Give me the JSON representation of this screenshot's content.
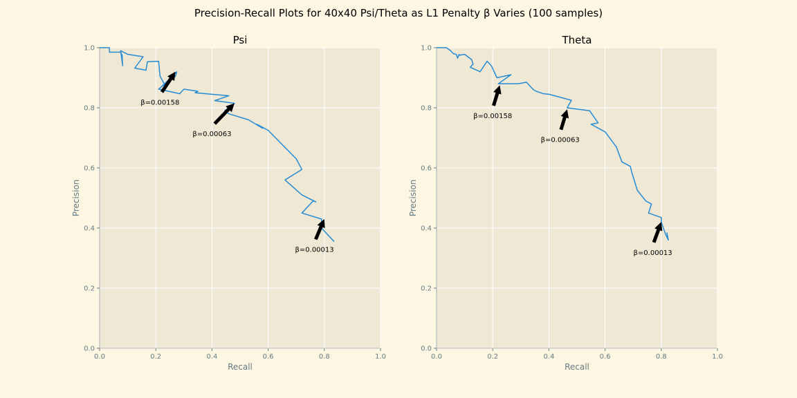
{
  "figure": {
    "suptitle": "Precision-Recall Plots for 40x40 Psi/Theta as L1 Penalty β Varies (100 samples)"
  },
  "colors": {
    "figure_bg": "#fdf6e3",
    "axes_bg": "#eee8d5",
    "grid": "#ffffff",
    "line": "#268bd2",
    "tick_text": "#657b83",
    "arrow": "#000000"
  },
  "chart_data": [
    {
      "type": "line",
      "title": "Psi",
      "xlabel": "Recall",
      "ylabel": "Precision",
      "xlim": [
        0,
        1
      ],
      "ylim": [
        0,
        1
      ],
      "grid": true,
      "xticks": [
        "0.0",
        "0.2",
        "0.4",
        "0.6",
        "0.8",
        "1.0"
      ],
      "yticks": [
        "0.0",
        "0.2",
        "0.4",
        "0.6",
        "0.8",
        "1.0"
      ],
      "series": [
        {
          "x": [
            0.0,
            0.035,
            0.035,
            0.075,
            0.08,
            0.082,
            0.075,
            0.085,
            0.1,
            0.155,
            0.125,
            0.165,
            0.17,
            0.21,
            0.215,
            0.23,
            0.22,
            0.27,
            0.275,
            0.22,
            0.21,
            0.285,
            0.3,
            0.35,
            0.34,
            0.46,
            0.41,
            0.48,
            0.445,
            0.46,
            0.53,
            0.58,
            0.56,
            0.6,
            0.7,
            0.72,
            0.66,
            0.72,
            0.77,
            0.76,
            0.72,
            0.79,
            0.79,
            0.835
          ],
          "y": [
            1.0,
            1.0,
            0.985,
            0.985,
            0.975,
            0.94,
            0.99,
            0.985,
            0.978,
            0.97,
            0.932,
            0.925,
            0.953,
            0.955,
            0.905,
            0.88,
            0.87,
            0.905,
            0.92,
            0.87,
            0.862,
            0.847,
            0.862,
            0.855,
            0.85,
            0.84,
            0.824,
            0.815,
            0.79,
            0.78,
            0.76,
            0.732,
            0.745,
            0.725,
            0.63,
            0.595,
            0.56,
            0.51,
            0.487,
            0.49,
            0.45,
            0.43,
            0.4,
            0.355
          ]
        }
      ],
      "annotations": [
        {
          "text": "β=0.00158",
          "x": 0.27,
          "y": 0.92,
          "text_x": 0.215,
          "text_y": 0.82
        },
        {
          "text": "β=0.00063",
          "x": 0.48,
          "y": 0.815,
          "text_x": 0.4,
          "text_y": 0.715
        },
        {
          "text": "β=0.00013",
          "x": 0.8,
          "y": 0.43,
          "text_x": 0.765,
          "text_y": 0.33
        }
      ]
    },
    {
      "type": "line",
      "title": "Theta",
      "xlabel": "Recall",
      "ylabel": "Precision",
      "xlim": [
        0,
        1
      ],
      "ylim": [
        0,
        1
      ],
      "grid": true,
      "xticks": [
        "0.0",
        "0.2",
        "0.4",
        "0.6",
        "0.8",
        "1.0"
      ],
      "yticks": [
        "0.0",
        "0.2",
        "0.4",
        "0.6",
        "0.8",
        "1.0"
      ],
      "series": [
        {
          "x": [
            0.0,
            0.035,
            0.05,
            0.06,
            0.07,
            0.075,
            0.08,
            0.082,
            0.1,
            0.125,
            0.13,
            0.12,
            0.155,
            0.18,
            0.195,
            0.215,
            0.265,
            0.22,
            0.23,
            0.29,
            0.32,
            0.345,
            0.355,
            0.38,
            0.4,
            0.48,
            0.465,
            0.545,
            0.575,
            0.55,
            0.6,
            0.64,
            0.66,
            0.69,
            0.695,
            0.715,
            0.745,
            0.765,
            0.755,
            0.8,
            0.8,
            0.815,
            0.825,
            0.82
          ],
          "y": [
            1.0,
            1.0,
            0.99,
            0.98,
            0.978,
            0.965,
            0.978,
            0.975,
            0.978,
            0.96,
            0.945,
            0.935,
            0.92,
            0.955,
            0.94,
            0.9,
            0.91,
            0.88,
            0.88,
            0.88,
            0.885,
            0.86,
            0.855,
            0.847,
            0.845,
            0.825,
            0.8,
            0.79,
            0.75,
            0.745,
            0.72,
            0.67,
            0.62,
            0.605,
            0.585,
            0.525,
            0.49,
            0.48,
            0.45,
            0.435,
            0.42,
            0.38,
            0.36,
            0.385
          ]
        }
      ],
      "annotations": [
        {
          "text": "β=0.00158",
          "x": 0.225,
          "y": 0.875,
          "text_x": 0.2,
          "text_y": 0.775
        },
        {
          "text": "β=0.00063",
          "x": 0.465,
          "y": 0.795,
          "text_x": 0.44,
          "text_y": 0.695
        },
        {
          "text": "β=0.00013",
          "x": 0.8,
          "y": 0.42,
          "text_x": 0.77,
          "text_y": 0.32
        }
      ]
    }
  ]
}
